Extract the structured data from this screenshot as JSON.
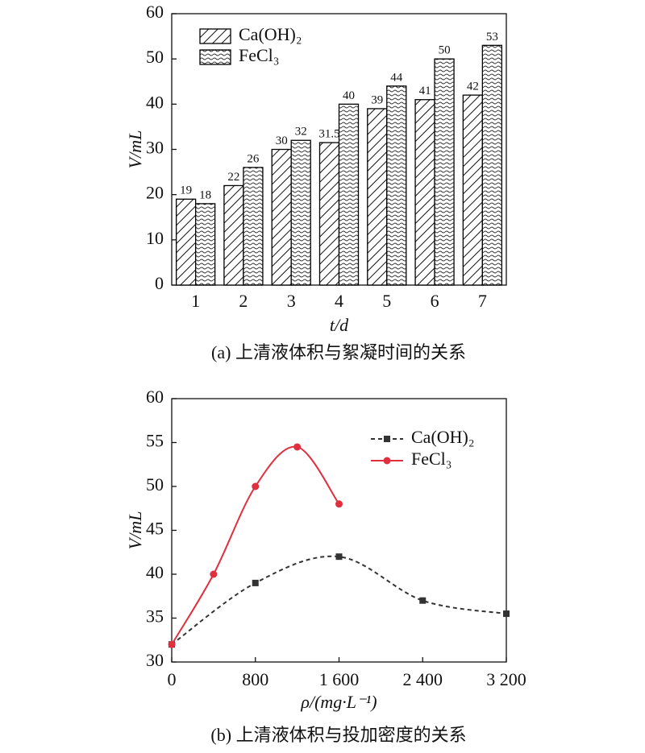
{
  "chart_data": [
    {
      "type": "bar",
      "caption": "(a) 上清液体积与絮凝时间的关系",
      "xlabel": "t/d",
      "ylabel": "V/mL",
      "categories": [
        "1",
        "2",
        "3",
        "4",
        "5",
        "6",
        "7"
      ],
      "series": [
        {
          "name": "Ca(OH)₂",
          "color": "#000000",
          "pattern": "hatch",
          "values": [
            19,
            22,
            30,
            31.5,
            39,
            41,
            42
          ]
        },
        {
          "name": "FeCl₃",
          "color": "#000000",
          "pattern": "wave",
          "values": [
            18,
            26,
            32,
            40,
            44,
            50,
            53
          ]
        }
      ],
      "ylim": [
        0,
        60
      ],
      "yticks": [
        0,
        10,
        20,
        30,
        40,
        50,
        60
      ],
      "legend": "upper left",
      "grid": false
    },
    {
      "type": "line",
      "caption": "(b) 上清液体积与投加密度的关系",
      "xlabel": "ρ/(mg·L⁻¹)",
      "ylabel": "V/mL",
      "series": [
        {
          "name": "Ca(OH)₂",
          "color": "#333333",
          "line_style": "dashed",
          "marker": "square",
          "x": [
            0,
            800,
            1600,
            2400,
            3200
          ],
          "values": [
            32,
            39,
            42,
            37,
            35.5
          ]
        },
        {
          "name": "FeCl₃",
          "color": "#e0303f",
          "line_style": "solid",
          "marker": "circle",
          "x": [
            0,
            400,
            800,
            1200,
            1600
          ],
          "values": [
            32,
            40,
            50,
            54.5,
            48
          ]
        }
      ],
      "xlim": [
        0,
        3200
      ],
      "xticks": [
        0,
        800,
        {
          "value": 1600,
          "label": "1 600"
        },
        {
          "value": 2400,
          "label": "2 400"
        },
        {
          "value": 3200,
          "label": "3 200"
        }
      ],
      "ylim": [
        30,
        60
      ],
      "yticks": [
        30,
        35,
        40,
        45,
        50,
        55,
        60
      ],
      "legend": "upper right",
      "grid": false
    }
  ]
}
